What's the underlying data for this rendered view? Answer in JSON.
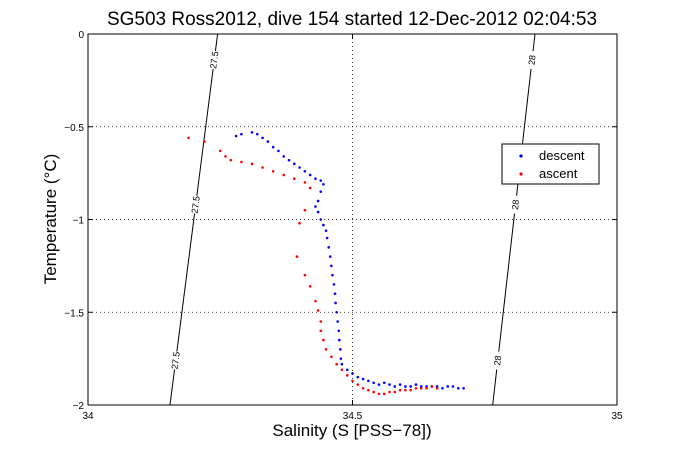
{
  "chart_data": {
    "type": "scatter",
    "title": "SG503 Ross2012, dive 154 started 12-Dec-2012 02:04:53",
    "xlabel": "Salinity (S [PSS−78])",
    "ylabel": "Temperature (°C)",
    "xlim": [
      34,
      35
    ],
    "ylim": [
      -2,
      0
    ],
    "xticks": [
      "34",
      "34.5",
      "35"
    ],
    "xtick_values": [
      34,
      34.5,
      35
    ],
    "yticks": [
      "0",
      "−0.5",
      "−1",
      "−1.5",
      "−2"
    ],
    "ytick_values": [
      0,
      -0.5,
      -1,
      -1.5,
      -2
    ],
    "grid": true,
    "legend": {
      "position": "right",
      "entries": [
        "descent",
        "ascent"
      ]
    },
    "colors": {
      "descent": "#0000ff",
      "ascent": "#ff0000",
      "isopycnal": "#000000"
    },
    "isopycnals": [
      {
        "sigma": 27.5,
        "label": "27.5",
        "s_top": 34.245,
        "s_bottom": 34.155
      },
      {
        "sigma": 28.0,
        "label": "28",
        "s_top": 34.845,
        "s_bottom": 34.765
      }
    ],
    "series": [
      {
        "name": "descent",
        "points": [
          [
            34.28,
            -0.55
          ],
          [
            34.29,
            -0.54
          ],
          [
            34.31,
            -0.53
          ],
          [
            34.32,
            -0.54
          ],
          [
            34.33,
            -0.56
          ],
          [
            34.34,
            -0.58
          ],
          [
            34.35,
            -0.61
          ],
          [
            34.36,
            -0.63
          ],
          [
            34.37,
            -0.66
          ],
          [
            34.38,
            -0.68
          ],
          [
            34.39,
            -0.7
          ],
          [
            34.4,
            -0.72
          ],
          [
            34.41,
            -0.74
          ],
          [
            34.42,
            -0.76
          ],
          [
            34.43,
            -0.78
          ],
          [
            34.44,
            -0.79
          ],
          [
            34.445,
            -0.81
          ],
          [
            34.44,
            -0.85
          ],
          [
            34.435,
            -0.9
          ],
          [
            34.43,
            -0.93
          ],
          [
            34.435,
            -0.96
          ],
          [
            34.44,
            -1.0
          ],
          [
            34.445,
            -1.03
          ],
          [
            34.45,
            -1.06
          ],
          [
            34.452,
            -1.1
          ],
          [
            34.455,
            -1.15
          ],
          [
            34.458,
            -1.2
          ],
          [
            34.46,
            -1.25
          ],
          [
            34.462,
            -1.3
          ],
          [
            34.465,
            -1.35
          ],
          [
            34.467,
            -1.4
          ],
          [
            34.468,
            -1.45
          ],
          [
            34.47,
            -1.5
          ],
          [
            34.472,
            -1.55
          ],
          [
            34.474,
            -1.6
          ],
          [
            34.475,
            -1.65
          ],
          [
            34.477,
            -1.7
          ],
          [
            34.478,
            -1.75
          ],
          [
            34.48,
            -1.78
          ],
          [
            34.49,
            -1.81
          ],
          [
            34.5,
            -1.83
          ],
          [
            34.51,
            -1.85
          ],
          [
            34.52,
            -1.86
          ],
          [
            34.53,
            -1.87
          ],
          [
            34.54,
            -1.88
          ],
          [
            34.55,
            -1.89
          ],
          [
            34.56,
            -1.88
          ],
          [
            34.57,
            -1.89
          ],
          [
            34.58,
            -1.9
          ],
          [
            34.59,
            -1.89
          ],
          [
            34.6,
            -1.9
          ],
          [
            34.61,
            -1.9
          ],
          [
            34.62,
            -1.89
          ],
          [
            34.63,
            -1.9
          ],
          [
            34.64,
            -1.9
          ],
          [
            34.65,
            -1.9
          ],
          [
            34.66,
            -1.9
          ],
          [
            34.67,
            -1.91
          ],
          [
            34.68,
            -1.9
          ],
          [
            34.69,
            -1.9
          ],
          [
            34.7,
            -1.91
          ],
          [
            34.71,
            -1.91
          ]
        ]
      },
      {
        "name": "ascent",
        "points": [
          [
            34.19,
            -0.56
          ],
          [
            34.22,
            -0.58
          ],
          [
            34.25,
            -0.63
          ],
          [
            34.26,
            -0.66
          ],
          [
            34.27,
            -0.68
          ],
          [
            34.29,
            -0.69
          ],
          [
            34.31,
            -0.7
          ],
          [
            34.33,
            -0.72
          ],
          [
            34.35,
            -0.74
          ],
          [
            34.37,
            -0.76
          ],
          [
            34.39,
            -0.78
          ],
          [
            34.41,
            -0.8
          ],
          [
            34.42,
            -0.83
          ],
          [
            34.41,
            -0.95
          ],
          [
            34.4,
            -1.02
          ],
          [
            34.395,
            -1.2
          ],
          [
            34.41,
            -1.3
          ],
          [
            34.42,
            -1.36
          ],
          [
            34.43,
            -1.44
          ],
          [
            34.435,
            -1.49
          ],
          [
            34.44,
            -1.55
          ],
          [
            34.44,
            -1.6
          ],
          [
            34.445,
            -1.65
          ],
          [
            34.45,
            -1.7
          ],
          [
            34.46,
            -1.74
          ],
          [
            34.47,
            -1.78
          ],
          [
            34.48,
            -1.81
          ],
          [
            34.49,
            -1.84
          ],
          [
            34.5,
            -1.87
          ],
          [
            34.51,
            -1.89
          ],
          [
            34.52,
            -1.91
          ],
          [
            34.53,
            -1.92
          ],
          [
            34.54,
            -1.93
          ],
          [
            34.55,
            -1.94
          ],
          [
            34.56,
            -1.94
          ],
          [
            34.57,
            -1.93
          ],
          [
            34.58,
            -1.93
          ],
          [
            34.59,
            -1.92
          ],
          [
            34.6,
            -1.92
          ],
          [
            34.61,
            -1.92
          ],
          [
            34.62,
            -1.91
          ],
          [
            34.63,
            -1.91
          ],
          [
            34.64,
            -1.91
          ],
          [
            34.65,
            -1.9
          ],
          [
            34.66,
            -1.91
          ]
        ]
      }
    ]
  }
}
